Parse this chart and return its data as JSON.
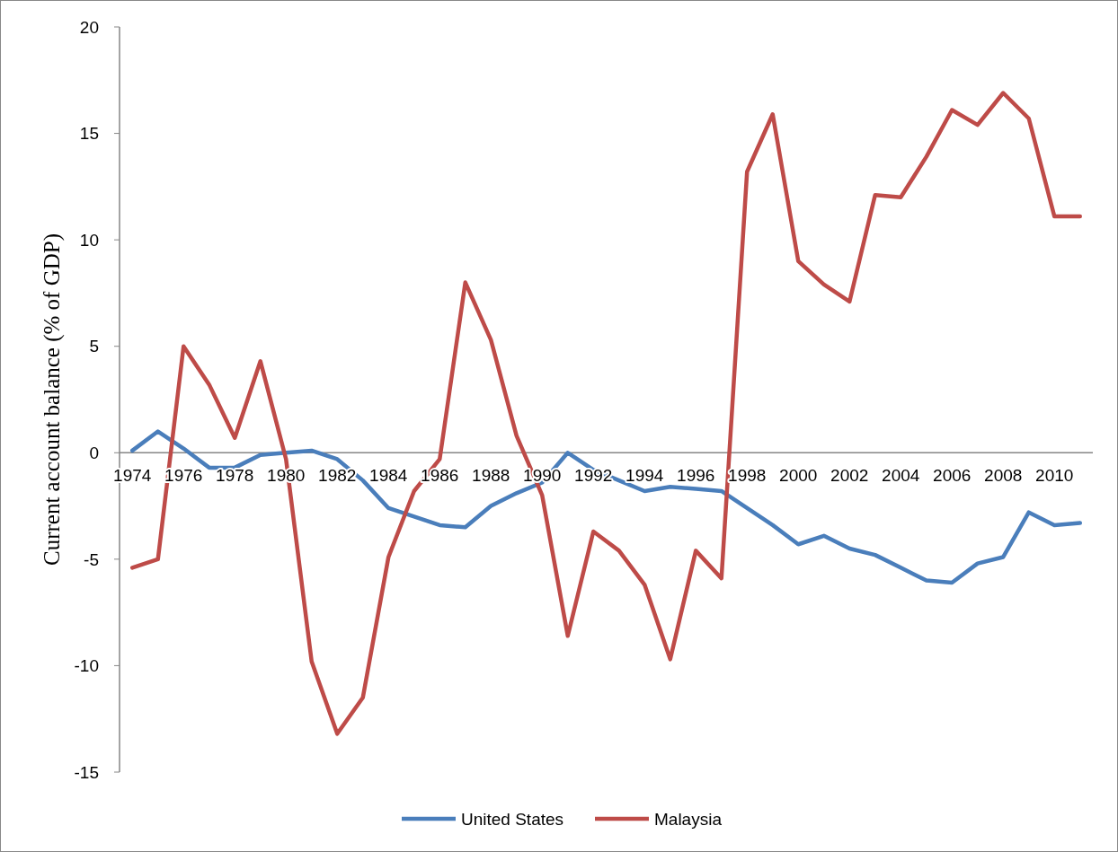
{
  "chart_data": {
    "type": "line",
    "ylabel": "Current account balance (% of GDP)",
    "categories": [
      "1974",
      null,
      "1976",
      null,
      "1978",
      null,
      "1980",
      null,
      "1982",
      null,
      "1984",
      null,
      "1986",
      null,
      "1988",
      null,
      "1990",
      null,
      "1992",
      null,
      "1994",
      null,
      "1996",
      null,
      "1998",
      null,
      "2000",
      null,
      "2002",
      null,
      "2004",
      null,
      "2006",
      null,
      "2008",
      null,
      "2010",
      null
    ],
    "series": [
      {
        "name": "United States",
        "color": "#4a7ebb",
        "values": [
          0.1,
          1.0,
          0.2,
          -0.7,
          -0.7,
          -0.1,
          0.0,
          0.1,
          -0.3,
          -1.3,
          -2.6,
          -3.0,
          -3.4,
          -3.5,
          -2.5,
          -1.9,
          -1.4,
          0.0,
          -0.8,
          -1.3,
          -1.8,
          -1.6,
          -1.7,
          -1.8,
          -2.6,
          -3.4,
          -4.3,
          -3.9,
          -4.5,
          -4.8,
          -5.4,
          -6.0,
          -6.1,
          -5.2,
          -4.9,
          -2.8,
          -3.4,
          -3.3
        ]
      },
      {
        "name": "Malaysia",
        "color": "#be4b48",
        "values": [
          -5.4,
          -5.0,
          5.0,
          3.2,
          0.7,
          4.3,
          -0.3,
          -9.8,
          -13.2,
          -11.5,
          -4.9,
          -1.8,
          -0.3,
          8.0,
          5.3,
          0.8,
          -2.0,
          -8.6,
          -3.7,
          -4.6,
          -6.2,
          -9.7,
          -4.6,
          -5.9,
          13.2,
          15.9,
          9.0,
          7.9,
          7.1,
          12.1,
          12.0,
          13.9,
          16.1,
          15.4,
          16.9,
          15.7,
          11.1,
          11.1
        ]
      }
    ],
    "ylim": [
      -15,
      20
    ],
    "yticks": [
      -15,
      -10,
      -5,
      0,
      5,
      10,
      15,
      20
    ],
    "grid": false,
    "legend": "bottom",
    "marker": "none",
    "line_style": "solid"
  }
}
